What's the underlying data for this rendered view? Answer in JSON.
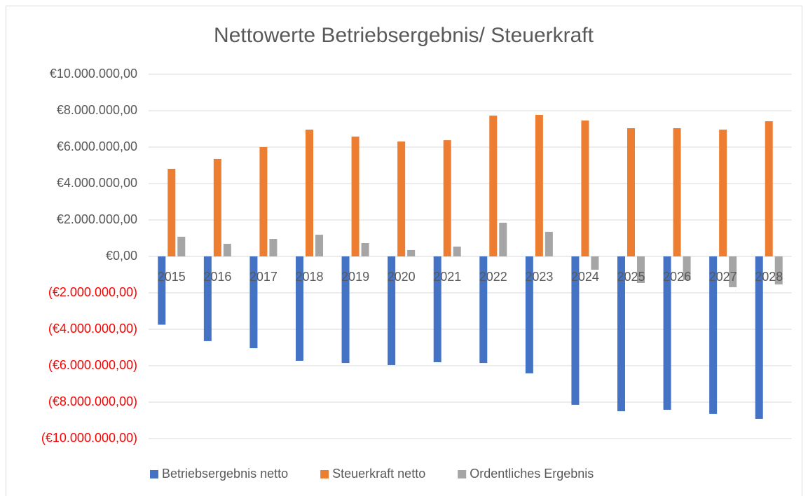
{
  "chart_data": {
    "type": "bar",
    "title": "Nettowerte Betriebsergebnis/ Steuerkraft",
    "categories": [
      "2015",
      "2016",
      "2017",
      "2018",
      "2019",
      "2020",
      "2021",
      "2022",
      "2023",
      "2024",
      "2025",
      "2026",
      "2027",
      "2028"
    ],
    "series": [
      {
        "name": "Betriebsergebnis netto",
        "color": "#4472c4",
        "values": [
          -3750000,
          -4650000,
          -5040000,
          -5730000,
          -5850000,
          -5960000,
          -5810000,
          -5850000,
          -6420000,
          -8150000,
          -8500000,
          -8420000,
          -8650000,
          -8920000
        ]
      },
      {
        "name": "Steuerkraft netto",
        "color": "#ed7d31",
        "values": [
          4810000,
          5350000,
          6000000,
          6960000,
          6580000,
          6310000,
          6380000,
          7730000,
          7770000,
          7460000,
          7040000,
          7040000,
          6960000,
          7420000
        ]
      },
      {
        "name": "Ordentliches Ergebnis",
        "color": "#a5a5a5",
        "values": [
          1080000,
          690000,
          960000,
          1190000,
          730000,
          350000,
          540000,
          1850000,
          1350000,
          -730000,
          -1460000,
          -1300000,
          -1690000,
          -1540000
        ]
      }
    ],
    "ylim": [
      -10000000,
      10000000
    ],
    "yticks": [
      {
        "value": -10000000,
        "label": "(€10.000.000,00)"
      },
      {
        "value": -8000000,
        "label": "(€8.000.000,00)"
      },
      {
        "value": -6000000,
        "label": "(€6.000.000,00)"
      },
      {
        "value": -4000000,
        "label": "(€4.000.000,00)"
      },
      {
        "value": -2000000,
        "label": "(€2.000.000,00)"
      },
      {
        "value": 0,
        "label": "€0,00"
      },
      {
        "value": 2000000,
        "label": "€2.000.000,00"
      },
      {
        "value": 4000000,
        "label": "€4.000.000,00"
      },
      {
        "value": 6000000,
        "label": "€6.000.000,00"
      },
      {
        "value": 8000000,
        "label": "€8.000.000,00"
      },
      {
        "value": 10000000,
        "label": "€10.000.000,00"
      }
    ],
    "negative_tick_label_color": "#ff0000",
    "grid": true,
    "legend": "bottom"
  }
}
